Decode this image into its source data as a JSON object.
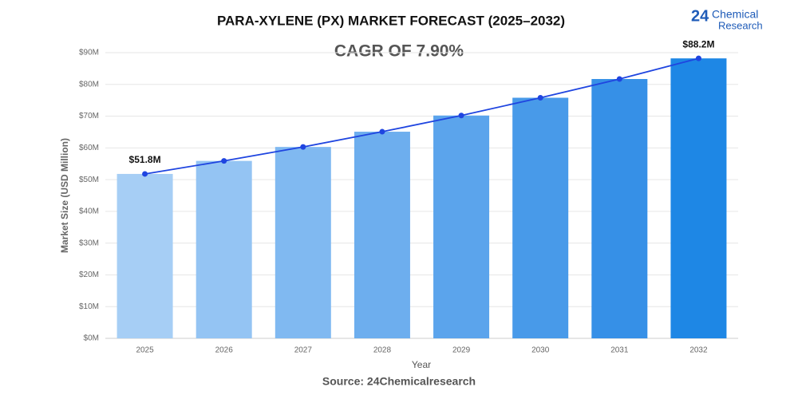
{
  "chart_data": {
    "type": "bar",
    "title": "PARA-XYLENE (PX) MARKET FORECAST (2025–2032)",
    "annotation": "CAGR OF 7.90%",
    "x_label": "Year",
    "y_label": "Market Size (USD Million)",
    "source": "Source: 24Chemicalresearch",
    "logo": {
      "number": "24",
      "line1": "Chemical",
      "line2": "Research"
    },
    "categories": [
      "2025",
      "2026",
      "2027",
      "2028",
      "2029",
      "2030",
      "2031",
      "2032"
    ],
    "values": [
      51.8,
      55.9,
      60.3,
      65.1,
      70.2,
      75.8,
      81.7,
      88.2
    ],
    "value_labels": [
      "$51.8M",
      null,
      null,
      null,
      null,
      null,
      null,
      "$88.2M"
    ],
    "colors": [
      "#a6cef5",
      "#94c4f3",
      "#80b9f1",
      "#6daeee",
      "#5ba4ec",
      "#489ae9",
      "#3690e7",
      "#1e87e5"
    ],
    "line_color": "#1f45e0",
    "ylim": [
      0,
      90
    ],
    "yticks": [
      {
        "value": 0,
        "label": "$0M"
      },
      {
        "value": 10,
        "label": "$10M"
      },
      {
        "value": 20,
        "label": "$20M"
      },
      {
        "value": 30,
        "label": "$30M"
      },
      {
        "value": 40,
        "label": "$40M"
      },
      {
        "value": 50,
        "label": "$50M"
      },
      {
        "value": 60,
        "label": "$60M"
      },
      {
        "value": 70,
        "label": "$70M"
      },
      {
        "value": 80,
        "label": "$80M"
      },
      {
        "value": 90,
        "label": "$90M"
      }
    ],
    "grid": true
  }
}
